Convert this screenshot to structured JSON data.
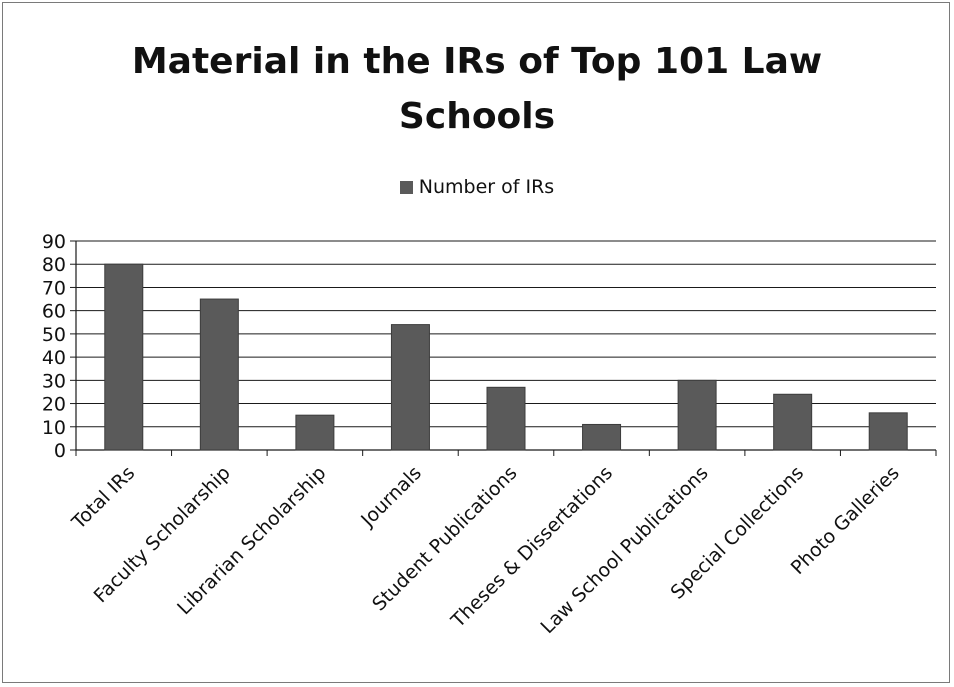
{
  "colors": {
    "bar": "#5a5a5a",
    "grid": "#1a1a1a",
    "frame": "#7a7a7a"
  },
  "chart_data": {
    "type": "bar",
    "title_line1": "Material in the IRs of Top 101 Law",
    "title_line2": "Schools",
    "legend": {
      "position": "top",
      "label": "Number of IRs"
    },
    "categories": [
      "Total IRs",
      "Faculty Scholarship",
      "Librarian Scholarship",
      "Journals",
      "Student Publications",
      "Theses & Dissertations",
      "Law School Publications",
      "Special Collections",
      "Photo Galleries"
    ],
    "series": [
      {
        "name": "Number of IRs",
        "values": [
          80,
          65,
          15,
          54,
          27,
          11,
          30,
          24,
          16
        ]
      }
    ],
    "ylim": [
      0,
      90
    ],
    "yticks": [
      0,
      10,
      20,
      30,
      40,
      50,
      60,
      70,
      80,
      90
    ],
    "grid": true
  }
}
